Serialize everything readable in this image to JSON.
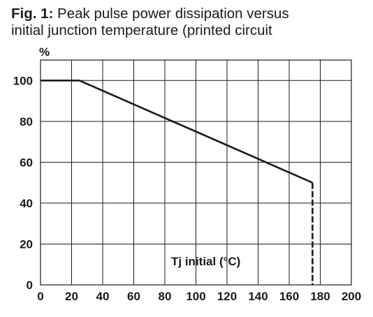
{
  "caption": {
    "label": "Fig. 1:",
    "line1": " Peak pulse  power dissipation versus",
    "line2": "initial junction  temperature  (printed circuit"
  },
  "chart_data": {
    "type": "line",
    "ylabel": "%",
    "xlabel": "Tj initial (°C)",
    "xlim": [
      0,
      200
    ],
    "ylim": [
      0,
      110
    ],
    "x_ticks": [
      0,
      20,
      40,
      60,
      80,
      100,
      120,
      140,
      160,
      180,
      200
    ],
    "x_tick_labels": [
      "0",
      "20",
      "40",
      "60",
      "80",
      "100",
      "120",
      "140",
      "160",
      "180",
      "200"
    ],
    "y_ticks": [
      0,
      20,
      40,
      60,
      80,
      100
    ],
    "y_tick_labels": [
      "0",
      "20",
      "40",
      "60",
      "80",
      "100"
    ],
    "grid": true,
    "series": [
      {
        "x": [
          0,
          25,
          175
        ],
        "y": [
          100,
          100,
          50
        ],
        "drop_to_zero_at_x": 175,
        "color": "#1a1a1a"
      }
    ]
  }
}
